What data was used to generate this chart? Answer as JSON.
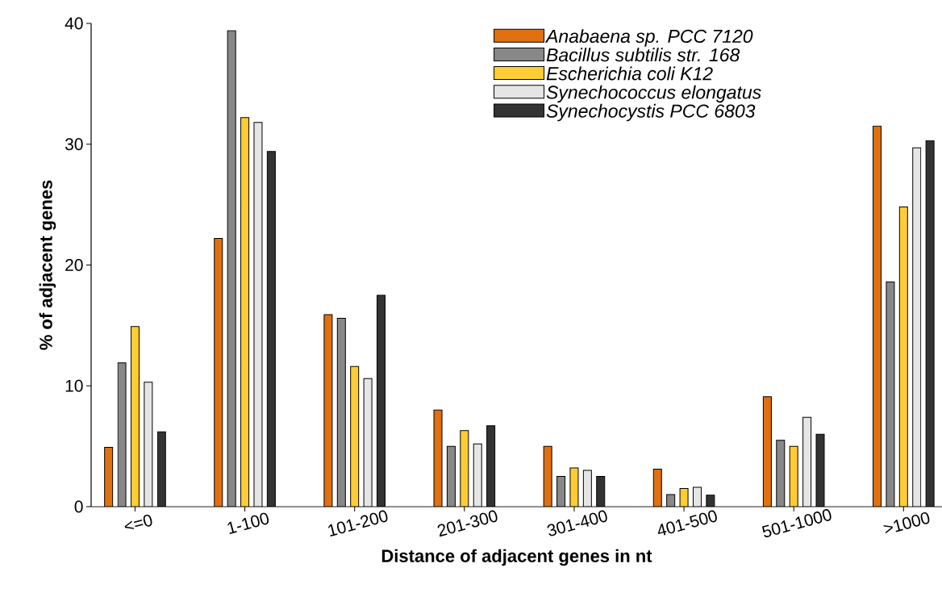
{
  "chart_data": {
    "type": "bar",
    "xlabel": "Distance of adjacent genes in nt",
    "ylabel": "% of adjacent genes",
    "categories": [
      "<=0",
      "1-100",
      "101-200",
      "201-300",
      "301-400",
      "401-500",
      "501-1000",
      ">1000"
    ],
    "series": [
      {
        "name": "*Anabaena sp. PCC 7120*",
        "color": "#e07010",
        "values": [
          4.9,
          22.2,
          15.9,
          8.0,
          5.0,
          3.1,
          9.1,
          31.5
        ]
      },
      {
        "name": "*Bacillus subtilis str. 168*",
        "color": "#888888",
        "values": [
          11.9,
          39.4,
          15.6,
          5.0,
          2.5,
          1.0,
          5.5,
          18.6
        ]
      },
      {
        "name": "*Escherichia coli K12*",
        "color": "#ffcc33",
        "values": [
          14.9,
          32.2,
          11.6,
          6.3,
          3.2,
          1.5,
          5.0,
          24.8
        ]
      },
      {
        "name": "*Synechococcus elongatus*",
        "color": "#e5e5e5",
        "values": [
          10.3,
          31.8,
          10.6,
          5.2,
          3.0,
          1.6,
          7.4,
          29.7
        ]
      },
      {
        "name": "*Synechocystis PCC 6803*",
        "color": "#333333",
        "values": [
          6.2,
          29.4,
          17.5,
          6.7,
          2.5,
          0.95,
          6.0,
          30.3
        ]
      }
    ],
    "ylim": [
      0,
      40
    ],
    "yticks": [
      0,
      10,
      20,
      30,
      40
    ],
    "legend": "top right",
    "grid": false
  }
}
